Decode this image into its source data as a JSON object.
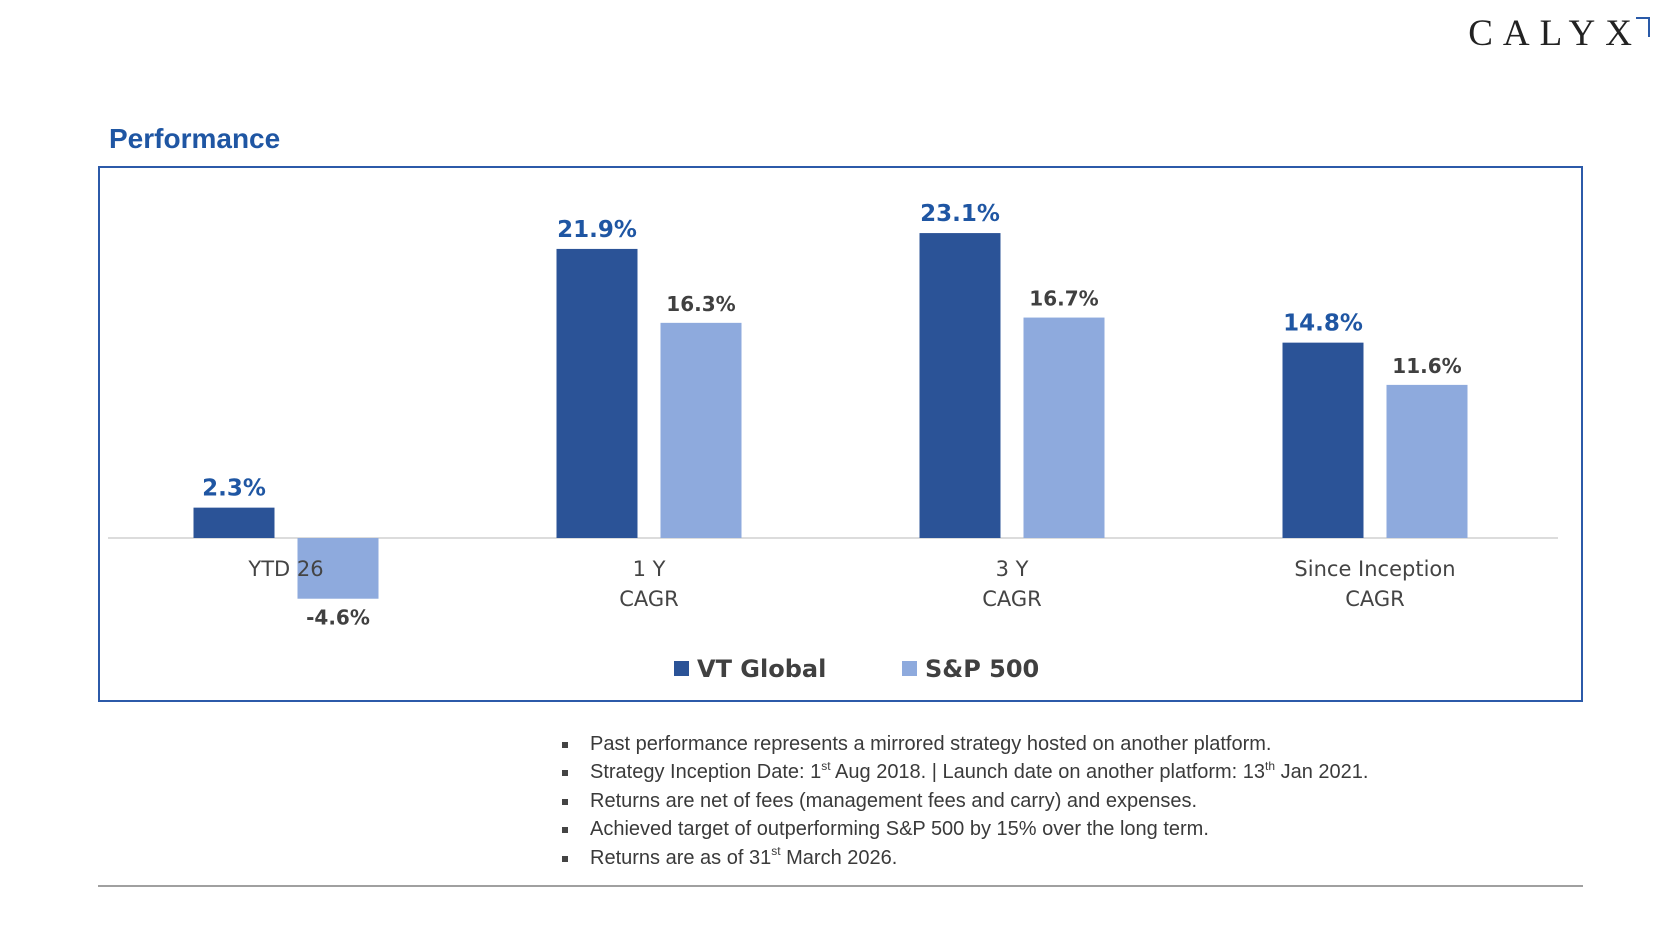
{
  "brand": {
    "logo_text": "CALYX"
  },
  "page": {
    "title": "Performance"
  },
  "chart_data": {
    "type": "bar",
    "categories": [
      [
        "YTD 26"
      ],
      [
        "1 Y",
        "CAGR"
      ],
      [
        "3 Y",
        "CAGR"
      ],
      [
        "Since Inception",
        "CAGR"
      ]
    ],
    "series": [
      {
        "name": "VT Global",
        "values": [
          2.3,
          21.9,
          23.1,
          14.8
        ],
        "color": "#2b5397",
        "label_color": "#1f56a3"
      },
      {
        "name": "S&P 500",
        "values": [
          -4.6,
          16.3,
          16.7,
          11.6
        ],
        "color": "#8eaadd",
        "label_color": "#404040"
      }
    ],
    "value_suffix": "%",
    "ylim": [
      -6,
      27
    ],
    "legend_position": "bottom",
    "grid": false
  },
  "notes": [
    {
      "pre": "Past performance represents a mirrored strategy hosted on another platform.",
      "segments": []
    },
    {
      "pre": "Strategy Inception Date: 1",
      "segments": [
        {
          "sup": "st"
        },
        {
          "text": " Aug 2018. | Launch date on another platform: 13"
        },
        {
          "sup": "th"
        },
        {
          "text": " Jan 2021."
        }
      ]
    },
    {
      "pre": "Returns are net of fees (management fees and carry) and expenses.",
      "segments": []
    },
    {
      "pre": "Achieved target of outperforming S&P 500 by 15% over the long term.",
      "segments": []
    },
    {
      "pre": "Returns are as of 31",
      "segments": [
        {
          "sup": "st"
        },
        {
          "text": " March 2026."
        }
      ]
    }
  ]
}
